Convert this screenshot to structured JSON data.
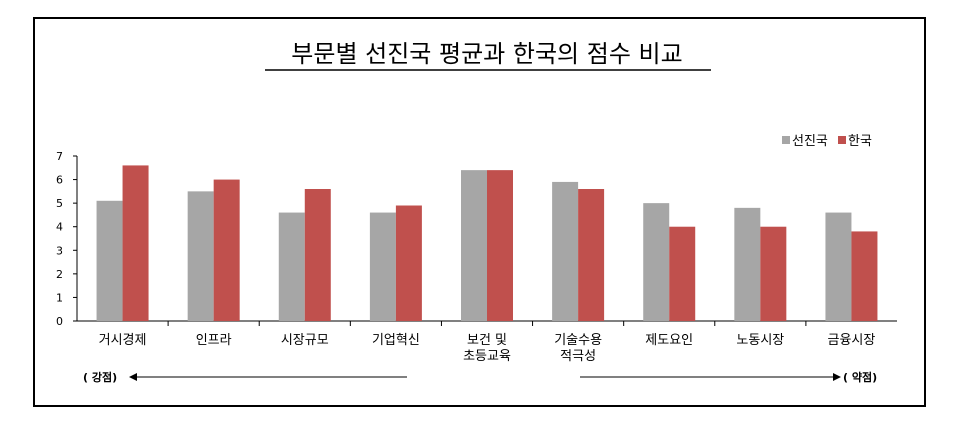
{
  "chart_data": {
    "type": "bar",
    "title": "부문별 선진국 평균과 한국의 점수 비교",
    "categories": [
      "거시경제",
      "인프라",
      "시장규모",
      "기업혁신",
      "보건 및\n초등교육",
      "기술수용\n적극성",
      "제도요인",
      "노동시장",
      "금융시장"
    ],
    "series": [
      {
        "name": "선진국",
        "color": "#a6a6a6",
        "values": [
          5.1,
          5.5,
          4.6,
          4.6,
          6.4,
          5.9,
          5.0,
          4.8,
          4.6
        ]
      },
      {
        "name": "한국",
        "color": "#c0504d",
        "values": [
          6.6,
          6.0,
          5.6,
          4.9,
          6.4,
          5.6,
          4.0,
          4.0,
          3.8
        ]
      }
    ],
    "yticks": [
      0,
      1,
      2,
      3,
      4,
      5,
      6,
      7
    ],
    "ylim": [
      0,
      7
    ],
    "legend": "top-right",
    "grid": false
  },
  "annotations": {
    "left": "( 강점)",
    "right": "( 약점)"
  }
}
